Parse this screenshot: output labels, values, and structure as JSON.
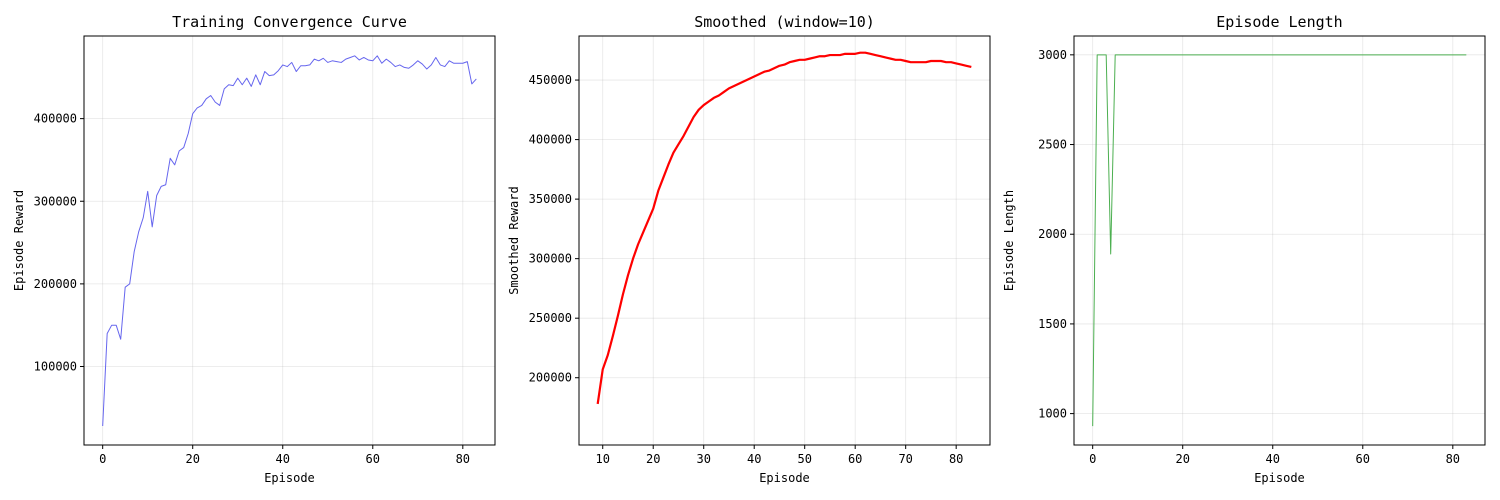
{
  "chart_data": [
    {
      "type": "line",
      "title": "Training Convergence Curve",
      "xlabel": "Episode",
      "ylabel": "Episode Reward",
      "xlim": [
        -4.15,
        87.15
      ],
      "ylim": [
        5000,
        500000
      ],
      "xticks": [
        0,
        20,
        40,
        60,
        80
      ],
      "yticks": [
        100000,
        200000,
        300000,
        400000
      ],
      "grid": true,
      "color": "#6666ee",
      "line_width": 1.0,
      "series": [
        {
          "x": [
            0,
            1,
            2,
            3,
            4,
            5,
            6,
            7,
            8,
            9,
            10,
            11,
            12,
            13,
            14,
            15,
            16,
            17,
            18,
            19,
            20,
            21,
            22,
            23,
            24,
            25,
            26,
            27,
            28,
            29,
            30,
            31,
            32,
            33,
            34,
            35,
            36,
            37,
            38,
            39,
            40,
            41,
            42,
            43,
            44,
            45,
            46,
            47,
            48,
            49,
            50,
            51,
            52,
            53,
            54,
            55,
            56,
            57,
            58,
            59,
            60,
            61,
            62,
            63,
            64,
            65,
            66,
            67,
            68,
            69,
            70,
            71,
            72,
            73,
            74,
            75,
            76,
            77,
            78,
            79,
            80,
            81,
            82,
            83
          ],
          "values": [
            28000,
            140000,
            150000,
            150000,
            133000,
            196000,
            200000,
            239000,
            263000,
            280000,
            312000,
            269000,
            307000,
            318000,
            320000,
            352000,
            344000,
            361000,
            365000,
            382000,
            406000,
            413000,
            416000,
            424000,
            428000,
            420000,
            416000,
            436000,
            441000,
            440000,
            449000,
            441000,
            449000,
            439000,
            453000,
            441000,
            457000,
            452000,
            453000,
            458000,
            465000,
            463000,
            468000,
            457000,
            464000,
            464000,
            465000,
            472000,
            470000,
            473000,
            468000,
            470000,
            469000,
            468000,
            472000,
            474000,
            476000,
            471000,
            474000,
            471000,
            470000,
            476000,
            467000,
            472000,
            468000,
            463000,
            465000,
            462000,
            461000,
            465000,
            470000,
            466000,
            460000,
            465000,
            474000,
            465000,
            463000,
            470000,
            467000,
            467000,
            467000,
            469000,
            442000,
            448000
          ]
        }
      ]
    },
    {
      "type": "line",
      "title": "Smoothed (window=10)",
      "xlabel": "Episode",
      "ylabel": "Smoothed Reward",
      "xlim": [
        5.3,
        86.7
      ],
      "ylim": [
        143500,
        487000
      ],
      "xticks": [
        10,
        20,
        30,
        40,
        50,
        60,
        70,
        80
      ],
      "yticks": [
        200000,
        250000,
        300000,
        350000,
        400000,
        450000
      ],
      "grid": true,
      "color": "#ff0000",
      "line_width": 2.2,
      "series": [
        {
          "x": [
            9,
            10,
            11,
            12,
            13,
            14,
            15,
            16,
            17,
            18,
            19,
            20,
            21,
            22,
            23,
            24,
            25,
            26,
            27,
            28,
            29,
            30,
            31,
            32,
            33,
            34,
            35,
            36,
            37,
            38,
            39,
            40,
            41,
            42,
            43,
            44,
            45,
            46,
            47,
            48,
            49,
            50,
            51,
            52,
            53,
            54,
            55,
            56,
            57,
            58,
            59,
            60,
            61,
            62,
            63,
            64,
            65,
            66,
            67,
            68,
            69,
            70,
            71,
            72,
            73,
            74,
            75,
            76,
            77,
            78,
            79,
            80,
            81,
            82,
            83
          ],
          "values": [
            178000,
            207000,
            219000,
            235000,
            252000,
            270000,
            286000,
            300000,
            312000,
            322000,
            332000,
            342000,
            357000,
            368000,
            379000,
            389000,
            396000,
            403000,
            411000,
            419000,
            425000,
            429000,
            432000,
            435000,
            437000,
            440000,
            443000,
            445000,
            447000,
            449000,
            451000,
            453000,
            455000,
            457000,
            458000,
            460000,
            462000,
            463000,
            465000,
            466000,
            467000,
            467000,
            468000,
            469000,
            470000,
            470000,
            471000,
            471000,
            471000,
            472000,
            472000,
            472000,
            473000,
            473000,
            472000,
            471000,
            470000,
            469000,
            468000,
            467000,
            467000,
            466000,
            465000,
            465000,
            465000,
            465000,
            466000,
            466000,
            466000,
            465000,
            465000,
            464000,
            463000,
            462000,
            461000
          ]
        }
      ]
    },
    {
      "type": "line",
      "title": "Episode Length",
      "xlabel": "Episode",
      "ylabel": "Episode Length",
      "xlim": [
        -4.15,
        87.15
      ],
      "ylim": [
        825,
        3105
      ],
      "xticks": [
        0,
        20,
        40,
        60,
        80
      ],
      "yticks": [
        1000,
        1500,
        2000,
        2500,
        3000
      ],
      "grid": true,
      "color": "#4caf50",
      "line_width": 1.0,
      "series": [
        {
          "x": [
            0,
            1,
            2,
            3,
            4,
            5,
            6,
            83
          ],
          "values": [
            930,
            3000,
            3000,
            3000,
            1890,
            3000,
            3000,
            3000
          ]
        }
      ]
    }
  ]
}
